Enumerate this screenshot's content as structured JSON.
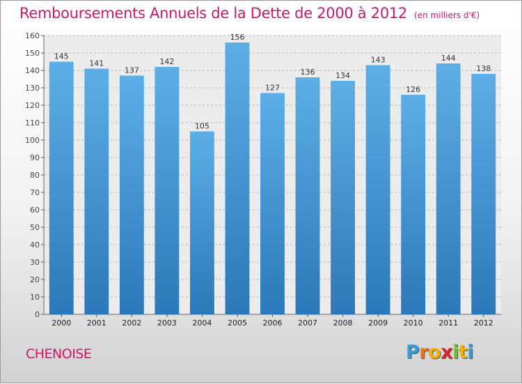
{
  "chart_data": {
    "type": "bar",
    "title": "Remboursements Annuels de la Dette de 2000 à 2012",
    "subtitle": "(en milliers d'€)",
    "categories": [
      "2000",
      "2001",
      "2002",
      "2003",
      "2004",
      "2005",
      "2006",
      "2007",
      "2008",
      "2009",
      "2010",
      "2011",
      "2012"
    ],
    "values": [
      145,
      141,
      137,
      142,
      105,
      156,
      127,
      136,
      134,
      143,
      126,
      144,
      138
    ],
    "xlabel": "",
    "ylabel": "",
    "ylim": [
      0,
      160
    ],
    "yticks": [
      0,
      10,
      20,
      30,
      40,
      50,
      60,
      70,
      80,
      90,
      100,
      110,
      120,
      130,
      140,
      150,
      160
    ],
    "grid": true,
    "data_labels": true,
    "legend": "none"
  },
  "footer": {
    "place": "CHENOISE",
    "logo_text": "Proxiti"
  },
  "colors": {
    "title": "#c8186a",
    "bar_top": "#5daee6",
    "bar_bottom": "#2c78b8",
    "grid": "#b4b4b4"
  }
}
